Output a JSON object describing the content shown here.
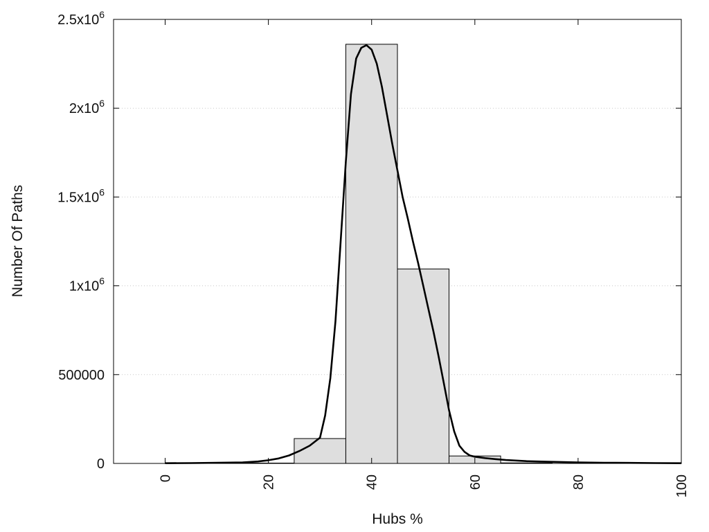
{
  "chart_data": {
    "type": "bar",
    "title": "",
    "xlabel": "Hubs %",
    "ylabel": "Number Of Paths",
    "xlim": [
      -10,
      100
    ],
    "ylim": [
      0,
      2500000
    ],
    "grid": true,
    "x_ticks": [
      {
        "value": 0,
        "label": "0"
      },
      {
        "value": 20,
        "label": "20"
      },
      {
        "value": 40,
        "label": "40"
      },
      {
        "value": 60,
        "label": "60"
      },
      {
        "value": 80,
        "label": "80"
      },
      {
        "value": 100,
        "label": "100"
      }
    ],
    "y_ticks": [
      {
        "value": 0,
        "label": "0",
        "mantissa": "",
        "exponent": ""
      },
      {
        "value": 500000,
        "label": "500000",
        "mantissa": "",
        "exponent": ""
      },
      {
        "value": 1000000,
        "label": "1x10",
        "mantissa": "1x10",
        "exponent": "6"
      },
      {
        "value": 1500000,
        "label": "1.5x10",
        "mantissa": "1.5x10",
        "exponent": "6"
      },
      {
        "value": 2000000,
        "label": "2x10",
        "mantissa": "2x10",
        "exponent": "6"
      },
      {
        "value": 2500000,
        "label": "2.5x10",
        "mantissa": "2.5x10",
        "exponent": "6"
      }
    ],
    "bars": [
      {
        "x0": 15,
        "x1": 25,
        "value": 2000
      },
      {
        "x0": 25,
        "x1": 35,
        "value": 140000
      },
      {
        "x0": 35,
        "x1": 45,
        "value": 2360000
      },
      {
        "x0": 45,
        "x1": 55,
        "value": 1095000
      },
      {
        "x0": 55,
        "x1": 65,
        "value": 42000
      },
      {
        "x0": 65,
        "x1": 75,
        "value": 3000
      }
    ],
    "curve": {
      "x": [
        0,
        5,
        10,
        15,
        18,
        20,
        22,
        24,
        26,
        28,
        30,
        31,
        32,
        33,
        34,
        35,
        36,
        37,
        38,
        39,
        40,
        41,
        42,
        43,
        44,
        45,
        46,
        47,
        48,
        49,
        50,
        51,
        52,
        53,
        54,
        55,
        56,
        57,
        58,
        59,
        60,
        62,
        64,
        66,
        70,
        75,
        80,
        85,
        90,
        95,
        100
      ],
      "y": [
        1000,
        2000,
        3500,
        6000,
        11000,
        18000,
        28000,
        45000,
        70000,
        100000,
        145000,
        270000,
        480000,
        800000,
        1250000,
        1700000,
        2080000,
        2280000,
        2340000,
        2355000,
        2330000,
        2250000,
        2120000,
        1960000,
        1800000,
        1650000,
        1500000,
        1380000,
        1250000,
        1130000,
        1000000,
        870000,
        740000,
        600000,
        450000,
        300000,
        180000,
        100000,
        65000,
        45000,
        38000,
        30000,
        24000,
        19000,
        13000,
        9000,
        6000,
        4000,
        3000,
        2000,
        1000
      ]
    }
  }
}
